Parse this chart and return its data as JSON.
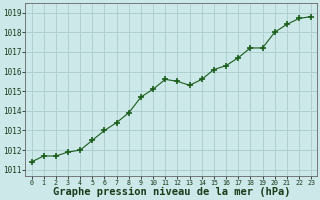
{
  "x": [
    0,
    1,
    2,
    3,
    4,
    5,
    6,
    7,
    8,
    9,
    10,
    11,
    12,
    13,
    14,
    15,
    16,
    17,
    18,
    19,
    20,
    21,
    22,
    23
  ],
  "y": [
    1011.4,
    1011.7,
    1011.7,
    1011.9,
    1012.0,
    1012.5,
    1013.0,
    1013.4,
    1013.9,
    1014.7,
    1015.1,
    1015.6,
    1015.5,
    1015.3,
    1015.6,
    1016.1,
    1016.3,
    1016.7,
    1017.2,
    1017.2,
    1018.0,
    1018.4,
    1018.7,
    1018.8
  ],
  "line_color": "#1a5c1a",
  "marker": "+",
  "marker_size": 4,
  "bg_color": "#cce8e8",
  "grid_color": "#aacccc",
  "xlabel": "Graphe pression niveau de la mer (hPa)",
  "xlabel_fontsize": 7.5,
  "ytick_start": 1011,
  "ytick_end": 1019,
  "ytick_step": 1,
  "xtick_labels": [
    "0",
    "1",
    "2",
    "3",
    "4",
    "5",
    "6",
    "7",
    "8",
    "9",
    "10",
    "11",
    "12",
    "13",
    "14",
    "15",
    "16",
    "17",
    "18",
    "19",
    "20",
    "21",
    "22",
    "23"
  ],
  "ylim": [
    1010.7,
    1019.5
  ],
  "xlim": [
    -0.5,
    23.5
  ]
}
